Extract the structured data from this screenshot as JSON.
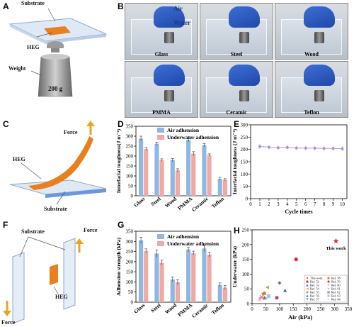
{
  "panels": {
    "A": "A",
    "B": "B",
    "C": "C",
    "D": "D",
    "E": "E",
    "F": "F",
    "G": "G",
    "H": "H"
  },
  "panel_a": {
    "substrate": "Substrate",
    "heg": "HEG",
    "weight": "Weight",
    "mass": "200 g"
  },
  "panel_b": {
    "air": "Air",
    "water": "Water",
    "photos": [
      "Glass",
      "Steel",
      "Wood",
      "PMMA",
      "Ceramic",
      "Teflon"
    ]
  },
  "panel_c": {
    "force": "Force",
    "heg": "HEG",
    "substrate": "Substrate"
  },
  "panel_f": {
    "substrate": "Substrate",
    "force_top": "Force",
    "heg": "HEG",
    "force_bottom": "Force"
  },
  "colors": {
    "air": "#8fb8e0",
    "underwater": "#f2a9a4",
    "e_line": "#b58ed6",
    "orange": "#e8801e"
  },
  "chart_data": [
    {
      "panel": "D",
      "type": "bar",
      "categories": [
        "Glass",
        "Steel",
        "Wood",
        "PMMA",
        "Ceramic",
        "Teflon"
      ],
      "series": [
        {
          "name": "Air adhension",
          "values": [
            288,
            262,
            180,
            282,
            255,
            85
          ],
          "errors": [
            12,
            8,
            8,
            10,
            8,
            8
          ]
        },
        {
          "name": "Underwater adhension",
          "values": [
            235,
            180,
            128,
            212,
            205,
            80
          ],
          "errors": [
            8,
            6,
            8,
            10,
            6,
            6
          ]
        }
      ],
      "ylabel": "Interfacial toughness(J m⁻²)",
      "ylim": [
        0,
        350
      ],
      "yticks": [
        0,
        50,
        100,
        150,
        200,
        250,
        300,
        350
      ]
    },
    {
      "panel": "E",
      "type": "line",
      "x": [
        1,
        2,
        3,
        4,
        5,
        6,
        7,
        8,
        9,
        10
      ],
      "series": [
        {
          "values": [
            212,
            209,
            207,
            208,
            206,
            205,
            205,
            204,
            204,
            203
          ],
          "errors": [
            10,
            10,
            9,
            10,
            9,
            9,
            10,
            9,
            10,
            10
          ]
        }
      ],
      "xlabel": "Cycle times",
      "ylabel": "Interfacial toughness  (J m⁻²)",
      "xlim": [
        0,
        10.5
      ],
      "ylim": [
        0,
        300
      ],
      "xticks": [
        0,
        1,
        2,
        3,
        4,
        5,
        6,
        7,
        8,
        9,
        10
      ],
      "yticks": [
        0,
        50,
        100,
        150,
        200,
        250,
        300
      ]
    },
    {
      "panel": "G",
      "type": "bar",
      "categories": [
        "Glass",
        "Steel",
        "Wood",
        "PMMA",
        "Ceramic",
        "Teflon"
      ],
      "series": [
        {
          "name": "Air adhension",
          "values": [
            305,
            240,
            112,
            260,
            265,
            85
          ],
          "errors": [
            15,
            18,
            12,
            10,
            15,
            10
          ]
        },
        {
          "name": "Underwater adhension",
          "values": [
            253,
            195,
            98,
            242,
            235,
            72
          ],
          "errors": [
            10,
            12,
            12,
            10,
            12,
            10
          ]
        }
      ],
      "ylabel": "Adhension strength (kPa)",
      "ylim": [
        0,
        350
      ],
      "yticks": [
        0,
        50,
        100,
        150,
        200,
        250,
        300,
        350
      ]
    },
    {
      "panel": "H",
      "type": "scatter",
      "xlabel": "Air (kPa)",
      "ylabel": "Underwater (kPa)",
      "xlim": [
        0,
        350
      ],
      "ylim": [
        0,
        250
      ],
      "xticks": [
        0,
        50,
        100,
        150,
        200,
        250,
        300,
        350
      ],
      "yticks": [
        0,
        50,
        100,
        150,
        200,
        250
      ],
      "annotation": "This work",
      "points": [
        {
          "name": "This work",
          "x": 305,
          "y": 212,
          "color": "#e8242b",
          "marker": "star"
        },
        {
          "name": "Ref. 52",
          "x": 160,
          "y": 150,
          "color": "#e8242b",
          "marker": "circle"
        },
        {
          "name": "Ref. 53",
          "x": 120,
          "y": 45,
          "color": "#3a78c8",
          "marker": "triangle"
        },
        {
          "name": "Ref. 54",
          "x": 55,
          "y": 55,
          "color": "#d8a020",
          "marker": "triangle-left"
        },
        {
          "name": "Ref. 55",
          "x": 100,
          "y": 70,
          "color": "#8a5ab8",
          "marker": "diamond"
        },
        {
          "name": "Ref. 56",
          "x": 45,
          "y": 20,
          "color": "#4a7a30",
          "marker": "triangle"
        },
        {
          "name": "Ref. 57",
          "x": 40,
          "y": 30,
          "color": "#3aaac8",
          "marker": "triangle-down"
        },
        {
          "name": "Ref. 58",
          "x": 45,
          "y": 35,
          "color": "#e8801e",
          "marker": "circle"
        },
        {
          "name": "Ref. 59",
          "x": 90,
          "y": 20,
          "color": "#c83a8a",
          "marker": "circle"
        },
        {
          "name": "Ref. 60",
          "x": 30,
          "y": 15,
          "color": "#f2a9a4",
          "marker": "triangle-down"
        },
        {
          "name": "Ref. 61",
          "x": 50,
          "y": 18,
          "color": "#b58ed6",
          "marker": "star"
        },
        {
          "name": "Ref. 62",
          "x": 35,
          "y": 22,
          "color": "#e86080",
          "marker": "cross"
        },
        {
          "name": "Ref. 63",
          "x": 60,
          "y": 25,
          "color": "#a0c8e8",
          "marker": "square"
        },
        {
          "name": "Ref. 64",
          "x": 25,
          "y": 12,
          "color": "#f0c0d0",
          "marker": "star"
        }
      ],
      "legend": [
        "This work",
        "Ref. 52",
        "Ref. 53",
        "Ref. 54",
        "Ref. 55",
        "Ref. 56",
        "Ref. 57",
        "Ref. 58",
        "Ref. 59",
        "Ref. 60",
        "Ref. 61",
        "Ref. 62",
        "Ref. 63",
        "Ref. 64"
      ]
    }
  ]
}
